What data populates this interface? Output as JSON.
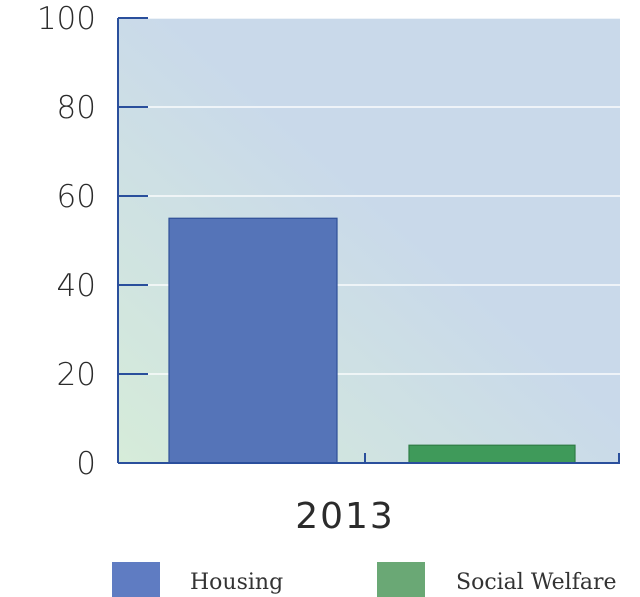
{
  "chart_data": {
    "type": "bar",
    "categories": [
      "2013"
    ],
    "series": [
      {
        "name": "Housing",
        "values": [
          55
        ],
        "color": "#5574b8"
      },
      {
        "name": "Social Welfare",
        "values": [
          4
        ],
        "color": "#3f9a5a"
      }
    ],
    "ylim": [
      0,
      100
    ],
    "yticks": [
      0,
      20,
      40,
      60,
      80,
      100
    ],
    "grid": true,
    "legend": "bottom",
    "colors": {
      "axis": "#2a4f9c",
      "grid": "#ffffff",
      "plot_bg_left": "#d6ecd9",
      "plot_bg_right": "#c9d9ea"
    }
  }
}
